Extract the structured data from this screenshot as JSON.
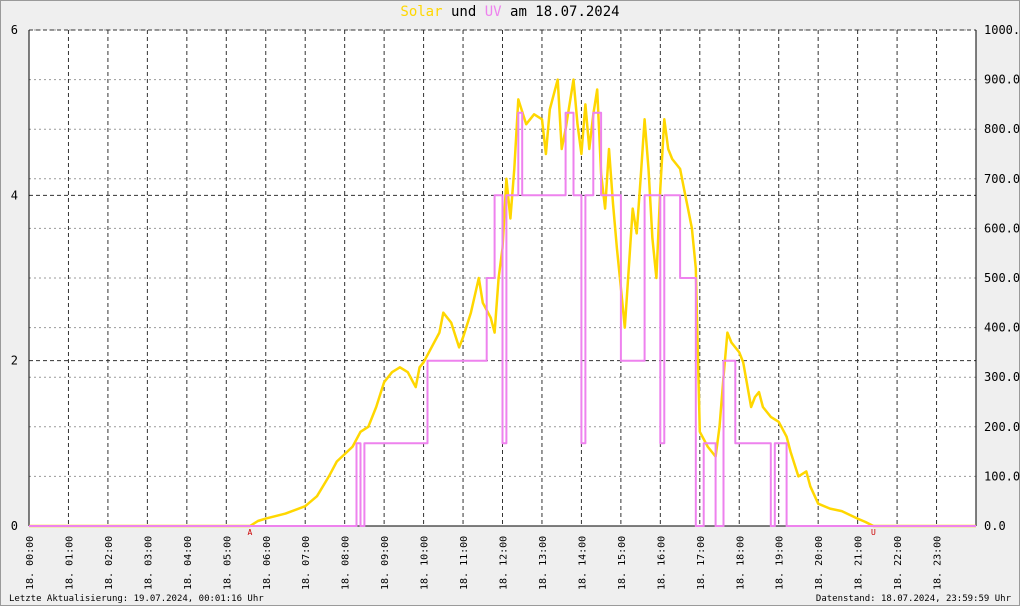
{
  "title": {
    "solar_word": "Solar",
    "and_word": "und",
    "uv_word": "UV",
    "date_part": "am 18.07.2024",
    "solar_color": "#ffd700",
    "uv_color": "#ee82ee"
  },
  "footer": {
    "left": "Letzte Aktualisierung: 19.07.2024, 00:01:16 Uhr",
    "right": "Datenstand: 18.07.2024, 23:59:59 Uhr"
  },
  "chart_data": {
    "type": "line",
    "x_unit": "hour",
    "xlim": [
      0,
      24
    ],
    "x_tick_labels": [
      "18. 00:00",
      "18. 01:00",
      "18. 02:00",
      "18. 03:00",
      "18. 04:00",
      "18. 05:00",
      "18. 06:00",
      "18. 07:00",
      "18. 08:00",
      "18. 09:00",
      "18. 10:00",
      "18. 11:00",
      "18. 12:00",
      "18. 13:00",
      "18. 14:00",
      "18. 15:00",
      "18. 16:00",
      "18. 17:00",
      "18. 18:00",
      "18. 19:00",
      "18. 20:00",
      "18. 21:00",
      "18. 22:00",
      "18. 23:00"
    ],
    "y_left": {
      "ylim": [
        0,
        6
      ],
      "ticks": [
        0,
        2,
        4,
        6
      ]
    },
    "y_right": {
      "ylim": [
        0,
        1000
      ],
      "ticks": [
        "0.0",
        "100.0",
        "200.0",
        "300.0",
        "400.0",
        "500.0",
        "600.0",
        "700.0",
        "800.0",
        "900.0",
        "1000.0"
      ]
    },
    "grid": true,
    "markers": [
      {
        "label": "A",
        "x": 5.6,
        "color": "#cc0000"
      },
      {
        "label": "U",
        "x": 21.4,
        "color": "#cc0000"
      }
    ],
    "series": [
      {
        "key": "solar",
        "color": "#ffd700",
        "axis": "right",
        "points": [
          [
            0,
            0
          ],
          [
            5.6,
            0
          ],
          [
            5.8,
            10
          ],
          [
            6.0,
            15
          ],
          [
            6.5,
            25
          ],
          [
            7.0,
            40
          ],
          [
            7.3,
            60
          ],
          [
            7.6,
            100
          ],
          [
            7.8,
            130
          ],
          [
            8.0,
            145
          ],
          [
            8.2,
            160
          ],
          [
            8.4,
            190
          ],
          [
            8.6,
            200
          ],
          [
            8.8,
            240
          ],
          [
            9.0,
            290
          ],
          [
            9.2,
            310
          ],
          [
            9.4,
            320
          ],
          [
            9.6,
            310
          ],
          [
            9.8,
            280
          ],
          [
            9.9,
            320
          ],
          [
            10.0,
            330
          ],
          [
            10.2,
            360
          ],
          [
            10.4,
            390
          ],
          [
            10.5,
            430
          ],
          [
            10.7,
            410
          ],
          [
            10.9,
            360
          ],
          [
            11.0,
            380
          ],
          [
            11.2,
            430
          ],
          [
            11.4,
            500
          ],
          [
            11.5,
            450
          ],
          [
            11.7,
            420
          ],
          [
            11.8,
            390
          ],
          [
            11.9,
            500
          ],
          [
            12.0,
            560
          ],
          [
            12.1,
            700
          ],
          [
            12.2,
            620
          ],
          [
            12.3,
            720
          ],
          [
            12.4,
            860
          ],
          [
            12.6,
            810
          ],
          [
            12.8,
            830
          ],
          [
            13.0,
            820
          ],
          [
            13.1,
            750
          ],
          [
            13.2,
            840
          ],
          [
            13.4,
            900
          ],
          [
            13.5,
            760
          ],
          [
            13.6,
            800
          ],
          [
            13.8,
            900
          ],
          [
            13.9,
            810
          ],
          [
            14.0,
            750
          ],
          [
            14.1,
            850
          ],
          [
            14.2,
            760
          ],
          [
            14.3,
            830
          ],
          [
            14.4,
            880
          ],
          [
            14.5,
            710
          ],
          [
            14.6,
            640
          ],
          [
            14.7,
            760
          ],
          [
            14.8,
            650
          ],
          [
            14.9,
            560
          ],
          [
            15.0,
            480
          ],
          [
            15.1,
            400
          ],
          [
            15.2,
            520
          ],
          [
            15.3,
            640
          ],
          [
            15.4,
            590
          ],
          [
            15.5,
            700
          ],
          [
            15.6,
            820
          ],
          [
            15.7,
            720
          ],
          [
            15.8,
            580
          ],
          [
            15.9,
            500
          ],
          [
            16.0,
            680
          ],
          [
            16.1,
            820
          ],
          [
            16.2,
            760
          ],
          [
            16.3,
            740
          ],
          [
            16.5,
            720
          ],
          [
            16.6,
            680
          ],
          [
            16.7,
            640
          ],
          [
            16.8,
            600
          ],
          [
            16.9,
            520
          ],
          [
            17.0,
            190
          ],
          [
            17.2,
            160
          ],
          [
            17.4,
            140
          ],
          [
            17.5,
            200
          ],
          [
            17.6,
            300
          ],
          [
            17.7,
            390
          ],
          [
            17.8,
            370
          ],
          [
            17.9,
            360
          ],
          [
            18.0,
            350
          ],
          [
            18.1,
            330
          ],
          [
            18.3,
            240
          ],
          [
            18.4,
            260
          ],
          [
            18.5,
            270
          ],
          [
            18.6,
            240
          ],
          [
            18.8,
            220
          ],
          [
            19.0,
            210
          ],
          [
            19.2,
            180
          ],
          [
            19.3,
            150
          ],
          [
            19.5,
            100
          ],
          [
            19.7,
            110
          ],
          [
            19.8,
            80
          ],
          [
            20.0,
            45
          ],
          [
            20.3,
            35
          ],
          [
            20.6,
            30
          ],
          [
            21.0,
            15
          ],
          [
            21.2,
            8
          ],
          [
            21.4,
            0
          ],
          [
            24,
            0
          ]
        ]
      },
      {
        "key": "uv",
        "color": "#ee82ee",
        "axis": "left",
        "points": [
          [
            0,
            0
          ],
          [
            8.3,
            0
          ],
          [
            8.3,
            1
          ],
          [
            8.4,
            1
          ],
          [
            8.4,
            0
          ],
          [
            8.5,
            0
          ],
          [
            8.5,
            1
          ],
          [
            10.1,
            1
          ],
          [
            10.1,
            2
          ],
          [
            11.6,
            2
          ],
          [
            11.6,
            3
          ],
          [
            11.8,
            3
          ],
          [
            11.8,
            4
          ],
          [
            12.0,
            4
          ],
          [
            12.0,
            1
          ],
          [
            12.1,
            1
          ],
          [
            12.1,
            4
          ],
          [
            12.4,
            4
          ],
          [
            12.4,
            5
          ],
          [
            12.5,
            5
          ],
          [
            12.5,
            4
          ],
          [
            13.6,
            4
          ],
          [
            13.6,
            5
          ],
          [
            13.8,
            5
          ],
          [
            13.8,
            4
          ],
          [
            14.0,
            4
          ],
          [
            14.0,
            1
          ],
          [
            14.1,
            1
          ],
          [
            14.1,
            4
          ],
          [
            14.3,
            4
          ],
          [
            14.3,
            5
          ],
          [
            14.5,
            5
          ],
          [
            14.5,
            4
          ],
          [
            15.0,
            4
          ],
          [
            15.0,
            2
          ],
          [
            15.6,
            2
          ],
          [
            15.6,
            4
          ],
          [
            16.0,
            4
          ],
          [
            16.0,
            1
          ],
          [
            16.1,
            1
          ],
          [
            16.1,
            4
          ],
          [
            16.5,
            4
          ],
          [
            16.5,
            3
          ],
          [
            16.9,
            3
          ],
          [
            16.9,
            0
          ],
          [
            17.1,
            0
          ],
          [
            17.1,
            1
          ],
          [
            17.4,
            1
          ],
          [
            17.4,
            0
          ],
          [
            17.6,
            0
          ],
          [
            17.6,
            2
          ],
          [
            17.9,
            2
          ],
          [
            17.9,
            1
          ],
          [
            18.8,
            1
          ],
          [
            18.8,
            0
          ],
          [
            18.9,
            0
          ],
          [
            18.9,
            1
          ],
          [
            19.2,
            1
          ],
          [
            19.2,
            0
          ],
          [
            24,
            0
          ]
        ]
      }
    ]
  }
}
